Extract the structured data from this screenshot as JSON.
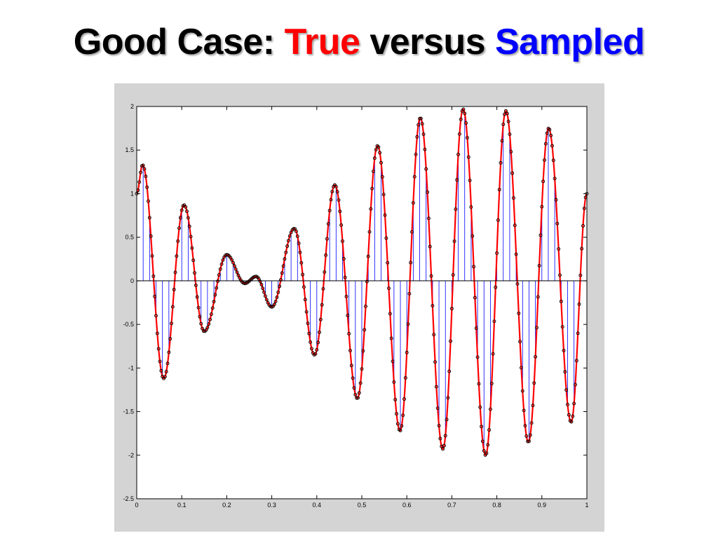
{
  "title": {
    "prefix": "Good Case: ",
    "word_true": "True",
    "middle": " versus ",
    "word_sampled": "Sampled"
  },
  "colors": {
    "true_signal": "#ff0000",
    "sampled_signal": "#0000ff",
    "sample_markers": "#000000",
    "figure_background": "#d4d4d4",
    "axes_background": "#ffffff"
  },
  "chart_data": {
    "type": "line",
    "title": "",
    "xlabel": "",
    "ylabel": "",
    "xlim": [
      0,
      1
    ],
    "ylim": [
      -2.5,
      2
    ],
    "xticks": [
      "0",
      "0.1",
      "0.2",
      "0.3",
      "0.4",
      "0.5",
      "0.6",
      "0.7",
      "0.8",
      "0.9",
      "1"
    ],
    "yticks": [
      "-2.5",
      "-2",
      "-1.5",
      "-1",
      "-0.5",
      "0",
      "0.5",
      "1",
      "1.5",
      "2"
    ],
    "grid": false,
    "legend": "none",
    "series": [
      {
        "role": "true",
        "style": "line",
        "color": "#ff0000",
        "x": [
          0,
          0.013,
          0.06,
          0.105,
          0.15,
          0.2,
          0.24,
          0.265,
          0.3,
          0.35,
          0.395,
          0.44,
          0.49,
          0.535,
          0.585,
          0.63,
          0.68,
          0.725,
          0.775,
          0.82,
          0.87,
          0.915,
          0.965,
          1.0
        ],
        "y": [
          1.0,
          1.33,
          -1.12,
          0.87,
          -0.58,
          0.3,
          -0.03,
          0.05,
          -0.3,
          0.6,
          -0.85,
          1.1,
          -1.35,
          1.55,
          -1.72,
          1.87,
          -1.93,
          1.97,
          -2.0,
          1.95,
          -1.85,
          1.75,
          -1.62,
          1.0
        ]
      },
      {
        "role": "sampled",
        "style": "stem",
        "color": "#0000ff",
        "sample_count": 70
      },
      {
        "role": "sample-markers",
        "style": "markers",
        "color": "#000000",
        "sample_count": 350
      }
    ]
  }
}
